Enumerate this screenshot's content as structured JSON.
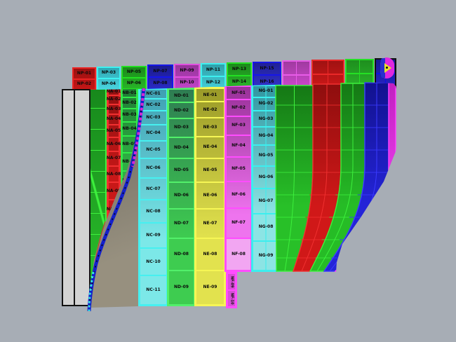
{
  "viewport": {
    "background": "#a7adb5"
  },
  "back_row": {
    "groups": [
      {
        "name": "red",
        "fill": "#c41616",
        "shade": "#9a1010",
        "border": "#ea2424",
        "labels": [
          "NP-01",
          "NP-02"
        ]
      },
      {
        "name": "cyan",
        "fill": "#49d4de",
        "shade": "#2fa8b4",
        "border": "#3df0f0",
        "labels": [
          "NP-03",
          "NP-04"
        ]
      },
      {
        "name": "green",
        "fill": "#28b428",
        "shade": "#1a8a1a",
        "border": "#22e022",
        "labels": [
          "NP-05",
          "NP-06"
        ]
      },
      {
        "name": "blue",
        "fill": "#2a2ac2",
        "shade": "#1a1a90",
        "border": "#1616ea",
        "labels": [
          "NP-07",
          "NP-08"
        ]
      },
      {
        "name": "magenta",
        "fill": "#c044c8",
        "shade": "#963499",
        "border": "#e050e0",
        "labels": [
          "NP-09",
          "NP-10"
        ]
      },
      {
        "name": "cyan",
        "fill": "#44ccd6",
        "shade": "#2fa0aa",
        "border": "#3df0f0",
        "labels": [
          "NP-11",
          "NP-12"
        ]
      },
      {
        "name": "green",
        "fill": "#2ab42a",
        "shade": "#1c8a1c",
        "border": "#22e022",
        "labels": [
          "NP-13",
          "NP-14"
        ]
      },
      {
        "name": "blue",
        "fill": "#3232c8",
        "shade": "#202096",
        "border": "#1616ea",
        "labels": [
          "NP-15",
          "NP-16"
        ]
      },
      {
        "name": "magenta",
        "fill": "#cc46cc",
        "shade": "#a03aa0",
        "border": "#e85ce8",
        "labels": null
      },
      {
        "name": "red",
        "fill": "#cc1818",
        "shade": "#a01212",
        "border": "#ea2828",
        "labels": null
      },
      {
        "name": "green",
        "fill": "#2ab42a",
        "shade": "#1e8e1e",
        "border": "#24e024",
        "labels": null
      },
      {
        "name": "blue",
        "fill": "#2424c4",
        "shade": "#181892",
        "border": "#0e0ee6",
        "labels": null
      }
    ]
  },
  "columns": {
    "green_grid": {
      "fill_top": "#17881c",
      "fill_bottom": "#2cc42c",
      "line": "#3df03d"
    },
    "red_strip": {
      "fill_top": "#8f1010",
      "fill_bottom": "#c81818",
      "border": "#f03030",
      "labels": [
        "NA-01",
        "NA-02",
        "NA-03",
        "NA-04",
        "NA-05",
        "NA-06",
        "NA-07",
        "NA-08",
        "NA-09",
        "NA-10"
      ]
    },
    "green_strip": {
      "fill_top": "#1f7c34",
      "fill_bottom": "#2eae42",
      "border": "#32e84a",
      "labels": [
        "NB-01",
        "NB-02",
        "NB-03",
        "NB-04",
        "NB-05",
        "NB-06",
        "NB-07"
      ]
    },
    "cyan": {
      "fill_top": "#3e9fb2",
      "fill_bottom": "#7ce8e8",
      "border": "#46f0f0",
      "labels": [
        "NC-01",
        "NC-02",
        "NC-03",
        "NC-04",
        "NC-05",
        "NC-06",
        "NC-07",
        "NC-08",
        "NC-09",
        "NC-10",
        "NC-11"
      ]
    },
    "teal_green": {
      "fill_top": "#2e7d52",
      "fill_bottom": "#3ecc50",
      "border": "#52f06a",
      "labels": [
        "ND-01",
        "ND-02",
        "ND-03",
        "ND-04",
        "ND-05",
        "ND-06",
        "ND-07",
        "ND-08",
        "ND-09"
      ]
    },
    "yellow": {
      "fill_top": "#9a9a28",
      "fill_bottom": "#e2e24e",
      "border": "#f6f655",
      "labels": [
        "NE-01",
        "NE-02",
        "NE-03",
        "NE-04",
        "NE-05",
        "NE-06",
        "NE-07",
        "NE-08",
        "NE-09"
      ]
    },
    "magenta": {
      "fill_top": "#993099",
      "fill_bottom": "#ee74ee",
      "border": "#ff4cff",
      "labels": [
        "NF-01",
        "NF-02",
        "NF-03",
        "NF-04",
        "NF-05",
        "NF-06",
        "NF-07",
        "NF-08"
      ],
      "tab_labels": [
        "NF-09",
        "NF-10"
      ]
    },
    "cyan2": {
      "fill_top": "#2f96a0",
      "fill_bottom": "#8ce4e4",
      "border": "#3ceeee",
      "labels": [
        "NG-01",
        "NG-02",
        "NG-03",
        "NG-04",
        "NG-05",
        "NG-06",
        "NG-07",
        "NG-08",
        "NG-09"
      ]
    }
  },
  "right_bands": [
    {
      "name": "green-grid",
      "fill_top": "#157815",
      "fill_bottom": "#28c028",
      "line": "#3df03d"
    },
    {
      "name": "red",
      "fill_top": "#8e0e0e",
      "fill_bottom": "#d01818",
      "line": "#f03030"
    },
    {
      "name": "green",
      "fill_top": "#157815",
      "fill_bottom": "#26bc26",
      "line": "#3df03d"
    },
    {
      "name": "blue",
      "fill_top": "#12128e",
      "fill_bottom": "#2424d8",
      "line": "#3a3aff"
    },
    {
      "name": "magenta-edge",
      "fill_top": "#c020c0",
      "fill_bottom": "#f040f0",
      "line": "#ff40ff"
    }
  ],
  "base_surface": {
    "top": "#6e6a61",
    "bottom": "#97907f"
  },
  "reference_plane": {
    "fill": "#d3d3d3",
    "frame": "#121212",
    "divider": "#151515"
  },
  "spline": {
    "main": "#1420cc",
    "overlay": "#d428d4",
    "ticks": "#0a0a0a",
    "bottom_dash": "#38e0e0",
    "hint": "#c04028"
  },
  "marker": {
    "body": "#e028e0",
    "inner": "#2830cc",
    "arrow": "#e8e428",
    "dot": "#101010"
  }
}
